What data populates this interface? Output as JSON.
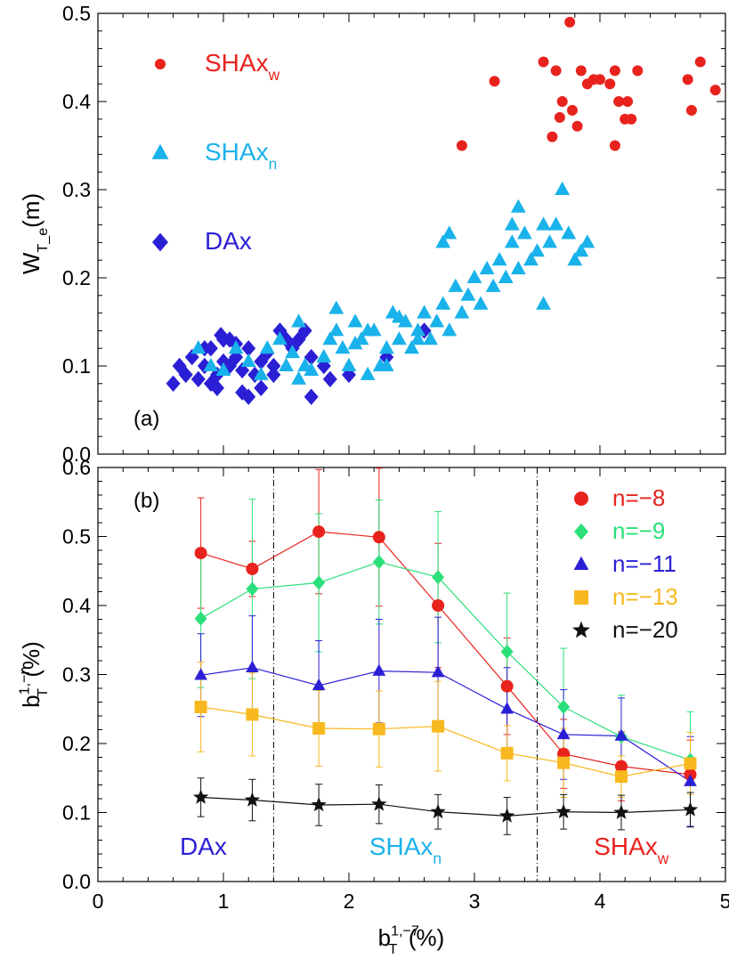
{
  "chart_data": [
    {
      "panel": "(a)",
      "type": "scatter",
      "ylabel": "W",
      "ylabel_sub": "T_e",
      "ylabel_unit": "(m)",
      "ylim": [
        0.0,
        0.5
      ],
      "xlim": [
        0,
        5
      ],
      "yticks": [
        "0.0",
        "0.1",
        "0.2",
        "0.3",
        "0.4",
        "0.5"
      ],
      "legend": [
        {
          "label": "SHAx",
          "sub": "w",
          "color": "#e8231e",
          "marker": "circle"
        },
        {
          "label": "SHAx",
          "sub": "n",
          "color": "#1ab2ea",
          "marker": "triangle"
        },
        {
          "label": "DAx",
          "sub": "",
          "color": "#2b1fd6",
          "marker": "diamond"
        }
      ],
      "series": [
        {
          "name": "SHAxw",
          "color": "#e8231e",
          "marker": "circle",
          "points": [
            [
              3.76,
              0.49
            ],
            [
              3.55,
              0.445
            ],
            [
              3.65,
              0.435
            ],
            [
              3.85,
              0.435
            ],
            [
              3.95,
              0.425
            ],
            [
              4.0,
              0.425
            ],
            [
              4.08,
              0.42
            ],
            [
              4.12,
              0.435
            ],
            [
              4.3,
              0.435
            ],
            [
              3.7,
              0.4
            ],
            [
              3.78,
              0.39
            ],
            [
              3.9,
              0.42
            ],
            [
              3.68,
              0.382
            ],
            [
              3.62,
              0.36
            ],
            [
              3.82,
              0.372
            ],
            [
              4.12,
              0.35
            ],
            [
              4.2,
              0.38
            ],
            [
              4.25,
              0.38
            ],
            [
              4.22,
              0.4
            ],
            [
              4.7,
              0.425
            ],
            [
              4.8,
              0.445
            ],
            [
              4.92,
              0.413
            ],
            [
              4.73,
              0.39
            ],
            [
              4.15,
              0.4
            ],
            [
              3.16,
              0.423
            ],
            [
              2.9,
              0.35
            ]
          ]
        },
        {
          "name": "SHAxn",
          "color": "#1ab2ea",
          "marker": "triangle",
          "points": [
            [
              0.8,
              0.12
            ],
            [
              0.9,
              0.1
            ],
            [
              1.0,
              0.095
            ],
            [
              1.1,
              0.12
            ],
            [
              1.2,
              0.105
            ],
            [
              1.3,
              0.09
            ],
            [
              1.35,
              0.12
            ],
            [
              1.45,
              0.13
            ],
            [
              1.5,
              0.1
            ],
            [
              1.55,
              0.115
            ],
            [
              1.6,
              0.085
            ],
            [
              1.65,
              0.1
            ],
            [
              1.7,
              0.095
            ],
            [
              1.8,
              0.11
            ],
            [
              1.85,
              0.13
            ],
            [
              1.9,
              0.14
            ],
            [
              1.95,
              0.12
            ],
            [
              2.0,
              0.1
            ],
            [
              2.05,
              0.15
            ],
            [
              2.1,
              0.13
            ],
            [
              2.15,
              0.09
            ],
            [
              2.2,
              0.14
            ],
            [
              2.25,
              0.1
            ],
            [
              2.3,
              0.12
            ],
            [
              2.35,
              0.16
            ],
            [
              2.4,
              0.13
            ],
            [
              2.45,
              0.15
            ],
            [
              2.5,
              0.12
            ],
            [
              2.55,
              0.14
            ],
            [
              2.6,
              0.16
            ],
            [
              2.65,
              0.13
            ],
            [
              2.7,
              0.15
            ],
            [
              2.75,
              0.17
            ],
            [
              2.8,
              0.14
            ],
            [
              2.85,
              0.19
            ],
            [
              2.9,
              0.16
            ],
            [
              2.95,
              0.18
            ],
            [
              3.0,
              0.2
            ],
            [
              3.05,
              0.17
            ],
            [
              3.1,
              0.21
            ],
            [
              3.15,
              0.19
            ],
            [
              3.2,
              0.22
            ],
            [
              3.25,
              0.2
            ],
            [
              3.3,
              0.24
            ],
            [
              3.35,
              0.21
            ],
            [
              3.4,
              0.25
            ],
            [
              3.45,
              0.22
            ],
            [
              3.5,
              0.23
            ],
            [
              3.55,
              0.26
            ],
            [
              3.6,
              0.24
            ],
            [
              3.65,
              0.26
            ],
            [
              3.7,
              0.3
            ],
            [
              3.75,
              0.25
            ],
            [
              3.8,
              0.22
            ],
            [
              3.85,
              0.23
            ],
            [
              3.9,
              0.24
            ],
            [
              1.9,
              0.165
            ],
            [
              2.4,
              0.155
            ],
            [
              2.55,
              0.13
            ],
            [
              2.05,
              0.125
            ],
            [
              2.75,
              0.24
            ],
            [
              2.8,
              0.25
            ],
            [
              3.3,
              0.26
            ],
            [
              3.35,
              0.28
            ],
            [
              3.55,
              0.17
            ],
            [
              2.3,
              0.1
            ],
            [
              2.15,
              0.14
            ],
            [
              1.6,
              0.15
            ]
          ]
        },
        {
          "name": "DAx",
          "color": "#2b1fd6",
          "marker": "diamond",
          "points": [
            [
              0.6,
              0.08
            ],
            [
              0.65,
              0.1
            ],
            [
              0.7,
              0.09
            ],
            [
              0.75,
              0.11
            ],
            [
              0.8,
              0.085
            ],
            [
              0.85,
              0.1
            ],
            [
              0.9,
              0.12
            ],
            [
              0.95,
              0.09
            ],
            [
              1.0,
              0.105
            ],
            [
              1.05,
              0.13
            ],
            [
              1.1,
              0.11
            ],
            [
              1.15,
              0.095
            ],
            [
              1.2,
              0.12
            ],
            [
              1.25,
              0.09
            ],
            [
              1.3,
              0.105
            ],
            [
              1.35,
              0.115
            ],
            [
              1.4,
              0.1
            ],
            [
              1.45,
              0.14
            ],
            [
              1.5,
              0.13
            ],
            [
              1.55,
              0.12
            ],
            [
              1.6,
              0.13
            ],
            [
              1.65,
              0.14
            ],
            [
              1.7,
              0.11
            ],
            [
              0.85,
              0.12
            ],
            [
              0.9,
              0.08
            ],
            [
              0.95,
              0.075
            ],
            [
              1.0,
              0.13
            ],
            [
              1.05,
              0.1
            ],
            [
              1.2,
              0.065
            ],
            [
              1.3,
              0.075
            ],
            [
              1.4,
              0.09
            ],
            [
              0.98,
              0.135
            ],
            [
              1.1,
              0.125
            ],
            [
              1.15,
              0.07
            ],
            [
              1.7,
              0.065
            ],
            [
              1.8,
              0.1
            ],
            [
              2.0,
              0.09
            ],
            [
              2.3,
              0.11
            ],
            [
              2.6,
              0.14
            ],
            [
              1.85,
              0.085
            ]
          ]
        }
      ]
    },
    {
      "panel": "(b)",
      "type": "line",
      "xlabel": "b",
      "xlabel_sub": "T",
      "xlabel_sup": "1,−7",
      "xlabel_unit": "(%)",
      "ylabel": "b",
      "ylabel_sub": "T",
      "ylabel_sup": "1,−n",
      "ylabel_unit": "(%)",
      "xlim": [
        0,
        5
      ],
      "ylim": [
        0.0,
        0.6
      ],
      "xticks": [
        "0",
        "1",
        "2",
        "3",
        "4",
        "5"
      ],
      "yticks": [
        "0.0",
        "0.1",
        "0.2",
        "0.3",
        "0.4",
        "0.5",
        "0.6"
      ],
      "x": [
        0.82,
        1.23,
        1.76,
        2.24,
        2.71,
        3.26,
        3.71,
        4.17,
        4.72
      ],
      "series": [
        {
          "name": "n=−8",
          "color": "#e8231e",
          "marker": "circle",
          "values": [
            0.476,
            0.453,
            0.507,
            0.499,
            0.4,
            0.283,
            0.185,
            0.167,
            0.155
          ],
          "err": [
            0.08,
            0.04,
            0.09,
            0.1,
            0.09,
            0.07,
            0.05,
            0.05,
            0.05
          ]
        },
        {
          "name": "n=−9",
          "color": "#2be07a",
          "marker": "diamond",
          "values": [
            0.381,
            0.424,
            0.433,
            0.463,
            0.441,
            0.333,
            0.253,
            0.21,
            0.176
          ],
          "err": [
            0.1,
            0.13,
            0.1,
            0.09,
            0.095,
            0.085,
            0.085,
            0.06,
            0.07
          ]
        },
        {
          "name": "n=−11",
          "color": "#2b1fd6",
          "marker": "triangle",
          "values": [
            0.299,
            0.31,
            0.284,
            0.305,
            0.303,
            0.25,
            0.213,
            0.211,
            0.145
          ],
          "err": [
            0.06,
            0.075,
            0.065,
            0.075,
            0.08,
            0.06,
            0.065,
            0.055,
            0.065
          ]
        },
        {
          "name": "n=−13",
          "color": "#f7b91f",
          "marker": "square",
          "values": [
            0.253,
            0.242,
            0.222,
            0.221,
            0.225,
            0.186,
            0.172,
            0.152,
            0.171
          ],
          "err": [
            0.065,
            0.06,
            0.055,
            0.055,
            0.065,
            0.04,
            0.05,
            0.03,
            0.045
          ]
        },
        {
          "name": "n=−20",
          "color": "#111111",
          "marker": "star",
          "values": [
            0.122,
            0.118,
            0.111,
            0.112,
            0.101,
            0.095,
            0.101,
            0.1,
            0.104
          ],
          "err": [
            0.028,
            0.03,
            0.03,
            0.028,
            0.025,
            0.027,
            0.025,
            0.025,
            0.025
          ]
        }
      ],
      "regions": [
        {
          "label": "DAx",
          "sub": "",
          "color": "#2b1fd6"
        },
        {
          "label": "SHAx",
          "sub": "n",
          "color": "#1ab2ea"
        },
        {
          "label": "SHAx",
          "sub": "w",
          "color": "#e8231e"
        }
      ],
      "region_boundaries": [
        1.4,
        3.5
      ]
    }
  ]
}
